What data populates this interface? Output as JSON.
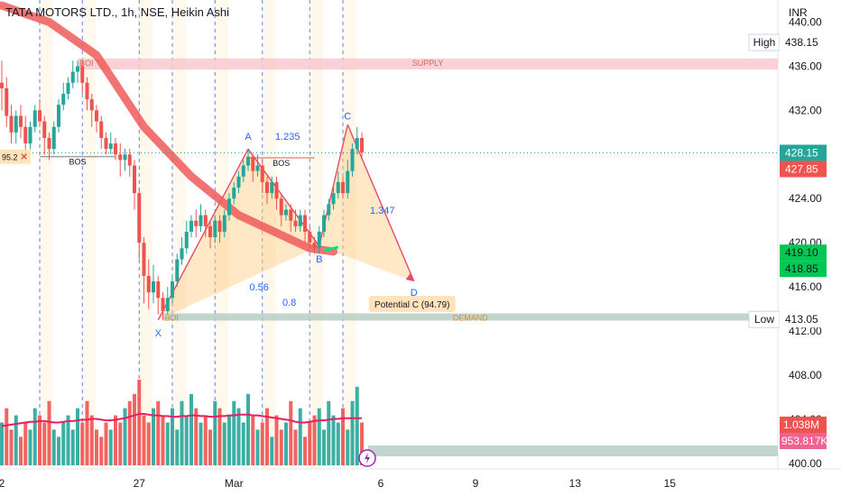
{
  "header": {
    "title": "TATA MOTORS LTD., 1h, NSE, Heikin Ashi"
  },
  "axis": {
    "currency": "INR"
  },
  "chart_data": {
    "type": "candlestick",
    "symbol": "TATA MOTORS LTD.",
    "interval": "1h",
    "exchange": "NSE",
    "style": "Heikin Ashi",
    "ylim": [
      399.5,
      442
    ],
    "y_ticks": [
      400,
      404,
      408,
      412,
      416,
      420,
      424,
      428,
      432,
      436,
      440
    ],
    "y_tick_labels": [
      "400.00",
      "404.00",
      "408.00",
      "412.00",
      "416.00",
      "420.00",
      "424.00",
      "428.00",
      "432.00",
      "436.00",
      "440.00"
    ],
    "x_ticks": [
      {
        "label": "2",
        "idx": 0
      },
      {
        "label": "27",
        "idx": 29
      },
      {
        "label": "Mar",
        "idx": 49
      },
      {
        "label": "6",
        "idx": 80
      },
      {
        "label": "9",
        "idx": 100
      },
      {
        "label": "13",
        "idx": 121
      },
      {
        "label": "15",
        "idx": 141
      }
    ],
    "candles": [
      [
        434.5,
        434,
        436.5,
        432
      ],
      [
        434,
        431.5,
        435,
        430.5
      ],
      [
        431.5,
        430,
        432.5,
        429
      ],
      [
        430,
        431.5,
        432,
        429
      ],
      [
        431.5,
        430.5,
        432.5,
        429.5
      ],
      [
        430.5,
        429,
        431.5,
        428
      ],
      [
        429,
        430.5,
        431,
        428.5
      ],
      [
        430.5,
        432,
        432.5,
        430
      ],
      [
        432,
        431,
        433,
        430.5
      ],
      [
        431,
        429.5,
        431.5,
        428
      ],
      [
        429.5,
        428.5,
        430,
        427.5
      ],
      [
        428.5,
        430.5,
        431,
        428
      ],
      [
        430.5,
        432.5,
        433,
        430
      ],
      [
        432.5,
        433.5,
        434.5,
        432
      ],
      [
        433.5,
        434.5,
        435,
        433
      ],
      [
        434.5,
        435.5,
        436.5,
        434
      ],
      [
        435.5,
        436,
        436.5,
        434.5
      ],
      [
        436,
        434.5,
        436.5,
        433.5
      ],
      [
        434.5,
        433,
        435,
        432
      ],
      [
        433,
        432,
        433.5,
        430.5
      ],
      [
        432,
        431,
        432.5,
        430
      ],
      [
        431,
        429.5,
        431.5,
        428.5
      ],
      [
        429.5,
        428.5,
        430,
        428
      ],
      [
        428.5,
        429,
        430,
        428
      ],
      [
        429,
        428,
        429.5,
        427.5
      ],
      [
        428,
        427.5,
        429,
        426
      ],
      [
        427.5,
        428,
        428.5,
        426.5
      ],
      [
        428,
        427,
        428.5,
        426
      ],
      [
        427,
        424.5,
        427.5,
        423
      ],
      [
        424.5,
        420,
        425,
        418.5
      ],
      [
        420,
        417,
        420.5,
        414.5
      ],
      [
        417,
        415.5,
        418.5,
        414
      ],
      [
        415.5,
        416.5,
        418,
        414.5
      ],
      [
        416.5,
        415,
        417,
        413.5
      ],
      [
        415,
        413.8,
        415.5,
        413
      ],
      [
        413.8,
        415,
        416,
        413.5
      ],
      [
        415,
        416.5,
        417,
        414.5
      ],
      [
        416.5,
        418.5,
        419,
        416
      ],
      [
        418.5,
        419.5,
        420.5,
        418
      ],
      [
        419.5,
        421,
        422,
        419
      ],
      [
        421,
        422,
        422.5,
        420.5
      ],
      [
        422,
        421.5,
        423,
        420.5
      ],
      [
        421.5,
        422.5,
        423.5,
        421
      ],
      [
        422.5,
        421.5,
        423,
        420.5
      ],
      [
        421.5,
        420.5,
        422,
        419.5
      ],
      [
        420.5,
        422,
        422.5,
        420
      ],
      [
        422,
        421,
        422.5,
        420
      ],
      [
        421,
        422.5,
        423,
        420.5
      ],
      [
        422.5,
        424,
        424.5,
        422
      ],
      [
        424,
        425,
        425.5,
        423.5
      ],
      [
        425,
        426,
        426.5,
        424.5
      ],
      [
        426,
        427,
        427.5,
        425.5
      ],
      [
        427,
        427.8,
        428.5,
        426.5
      ],
      [
        427.8,
        426.5,
        428,
        425.5
      ],
      [
        426.5,
        427,
        428,
        426
      ],
      [
        427,
        425.5,
        427.5,
        424.5
      ],
      [
        425.5,
        424.5,
        426,
        423.5
      ],
      [
        424.5,
        425.5,
        426,
        424
      ],
      [
        425.5,
        424,
        426,
        423
      ],
      [
        424,
        422.5,
        424.5,
        421.5
      ],
      [
        422.5,
        423,
        423.5,
        422
      ],
      [
        423,
        422,
        423.5,
        421
      ],
      [
        422,
        421.5,
        423,
        421
      ],
      [
        421.5,
        422.5,
        423,
        421
      ],
      [
        422.5,
        421,
        423,
        420
      ],
      [
        421,
        420,
        421.5,
        419.5
      ],
      [
        420,
        419.5,
        420.5,
        419
      ],
      [
        419.5,
        421,
        421.5,
        419
      ],
      [
        421,
        422.5,
        423,
        420.5
      ],
      [
        422.5,
        423.5,
        424,
        422
      ],
      [
        423.5,
        424.5,
        425,
        423
      ],
      [
        424.5,
        425.5,
        426.5,
        424
      ],
      [
        425.5,
        424.5,
        426,
        424
      ],
      [
        424.5,
        426.5,
        427.5,
        424
      ],
      [
        426.5,
        428.5,
        429,
        426
      ],
      [
        428.5,
        429.5,
        430.5,
        428
      ],
      [
        429.5,
        428.2,
        430,
        427.5
      ]
    ],
    "volume": [
      6,
      8,
      5,
      7,
      4,
      6,
      5,
      8,
      7,
      6,
      9,
      5,
      4,
      6,
      7,
      5,
      8,
      6,
      9,
      7,
      5,
      4,
      6,
      5,
      7,
      6,
      8,
      9,
      10,
      12,
      7,
      6,
      8,
      9,
      7,
      6,
      8,
      5,
      9,
      7,
      10,
      8,
      6,
      7,
      5,
      9,
      8,
      6,
      7,
      9,
      8,
      6,
      10,
      7,
      5,
      6,
      8,
      4,
      7,
      5,
      6,
      9,
      5,
      8,
      4,
      6,
      7,
      8,
      5,
      9,
      7,
      6,
      8,
      5,
      9,
      11,
      6
    ],
    "volume_up": [
      1,
      0,
      0,
      1,
      0,
      0,
      1,
      1,
      0,
      0,
      0,
      1,
      1,
      1,
      1,
      1,
      1,
      0,
      0,
      0,
      0,
      0,
      0,
      1,
      0,
      0,
      1,
      0,
      0,
      0,
      0,
      0,
      1,
      0,
      0,
      1,
      1,
      1,
      1,
      1,
      1,
      0,
      1,
      0,
      0,
      1,
      0,
      1,
      1,
      1,
      1,
      1,
      1,
      0,
      1,
      0,
      0,
      1,
      0,
      0,
      1,
      0,
      0,
      1,
      0,
      0,
      0,
      1,
      1,
      1,
      1,
      1,
      0,
      1,
      1,
      1,
      0
    ],
    "volume_sma": [
      5.5,
      5.6,
      5.7,
      5.8,
      5.9,
      6,
      6.1,
      6.1,
      6.2,
      6.2,
      6.1,
      6,
      6,
      6.1,
      6.2,
      6.2,
      6.3,
      6.4,
      6.4,
      6.5,
      6.5,
      6.4,
      6.3,
      6.3,
      6.4,
      6.5,
      6.6,
      6.8,
      7,
      7.2,
      7.2,
      7.1,
      7,
      7,
      6.9,
      6.9,
      6.8,
      6.8,
      6.9,
      6.9,
      7,
      7,
      6.9,
      6.9,
      6.8,
      6.8,
      6.9,
      6.9,
      7,
      7,
      7.1,
      7.1,
      7.1,
      7,
      7,
      6.9,
      6.8,
      6.7,
      6.6,
      6.5,
      6.4,
      6.3,
      6.1,
      6,
      6,
      6.1,
      6.2,
      6.3,
      6.3,
      6.4,
      6.5,
      6.5,
      6.6,
      6.6,
      6.6,
      6.6,
      6.6
    ],
    "volume_labels": {
      "last": "1.038M",
      "avg": "953.817K"
    },
    "moving_average": [
      [
        0,
        441.5
      ],
      [
        10,
        440
      ],
      [
        20,
        437
      ],
      [
        30,
        430.5
      ],
      [
        40,
        426
      ],
      [
        50,
        422.5
      ],
      [
        55,
        421.5
      ],
      [
        60,
        420.5
      ],
      [
        65,
        419.5
      ],
      [
        70,
        419.2
      ]
    ],
    "moving_average_tail": [
      [
        68,
        419.3
      ],
      [
        71,
        419.6
      ]
    ],
    "zones": [
      {
        "name": "SUPPLY",
        "tag": "BOI",
        "x0": 16,
        "y_low": 435.7,
        "y_high": 436.7
      },
      {
        "name": "DEMAND",
        "tag": "BOI",
        "x0": 34,
        "y_low": 413.1,
        "y_high": 413.6
      }
    ],
    "harmonic": {
      "points": [
        {
          "label": "X",
          "idx": 33,
          "price": 413
        },
        {
          "label": "A",
          "idx": 52,
          "price": 428.5
        },
        {
          "label": "B",
          "idx": 67,
          "price": 419.7
        },
        {
          "label": "C",
          "idx": 73,
          "price": 430.7
        },
        {
          "label": "D",
          "idx": 87,
          "price": 416.5
        }
      ],
      "ratios": [
        "0.56",
        "0.8",
        "1.235",
        "1.347"
      ],
      "potential_label": "Potential C (94.79)"
    },
    "bos": [
      {
        "label": "BOS",
        "idx0": 8,
        "idx1": 24,
        "price": 427.8
      },
      {
        "label": "BOS",
        "idx0": 52,
        "idx1": 66,
        "price": 427.7
      }
    ],
    "left_marker": "95.2",
    "price_tags": {
      "high": {
        "label": "High",
        "value": "438.15"
      },
      "low": {
        "label": "Low",
        "value": "413.05"
      },
      "last": "428.15",
      "prev": "427.85",
      "green_a": "419.10",
      "green_b": "418.85"
    },
    "vlines_idx": [
      8,
      17,
      29,
      36,
      45,
      55,
      65,
      72
    ]
  }
}
